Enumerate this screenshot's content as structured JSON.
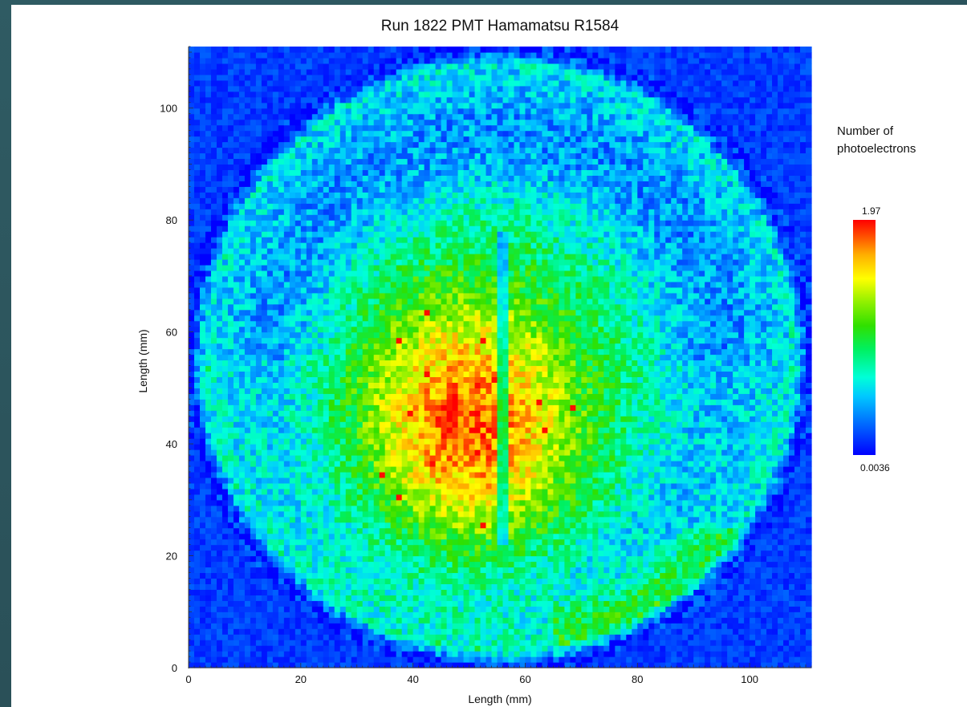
{
  "chart_data": {
    "type": "heatmap",
    "title": "Run 1822 PMT Hamamatsu R1584",
    "xlabel": "Length (mm)",
    "ylabel": "Length (mm)",
    "xlim": [
      0,
      111
    ],
    "ylim": [
      0,
      111
    ],
    "x_ticks": [
      0,
      20,
      40,
      60,
      80,
      100
    ],
    "y_ticks": [
      0,
      20,
      40,
      60,
      80,
      100
    ],
    "colorbar": {
      "title": "Number of photoelectrons",
      "title_line1": "Number of",
      "title_line2": "photoelectrons",
      "min": 0.0036,
      "max": 1.97,
      "min_label": "0.0036",
      "max_label": "1.97",
      "colormap": [
        "#0000ff",
        "#00c8ff",
        "#00ff90",
        "#30e000",
        "#ffff00",
        "#ff0000"
      ]
    },
    "grid_cells": 111,
    "features": {
      "sensitive_disk_center_mm": [
        55.5,
        55.5
      ],
      "sensitive_disk_radius_mm": 55,
      "peak_region_center_mm": [
        50,
        44
      ],
      "peak_value": 1.9,
      "mid_disk_value": 0.75,
      "edge_value": 0.05,
      "vertical_gap_x_mm": 56,
      "vertical_gap_range_y_mm": [
        22,
        78
      ]
    }
  }
}
